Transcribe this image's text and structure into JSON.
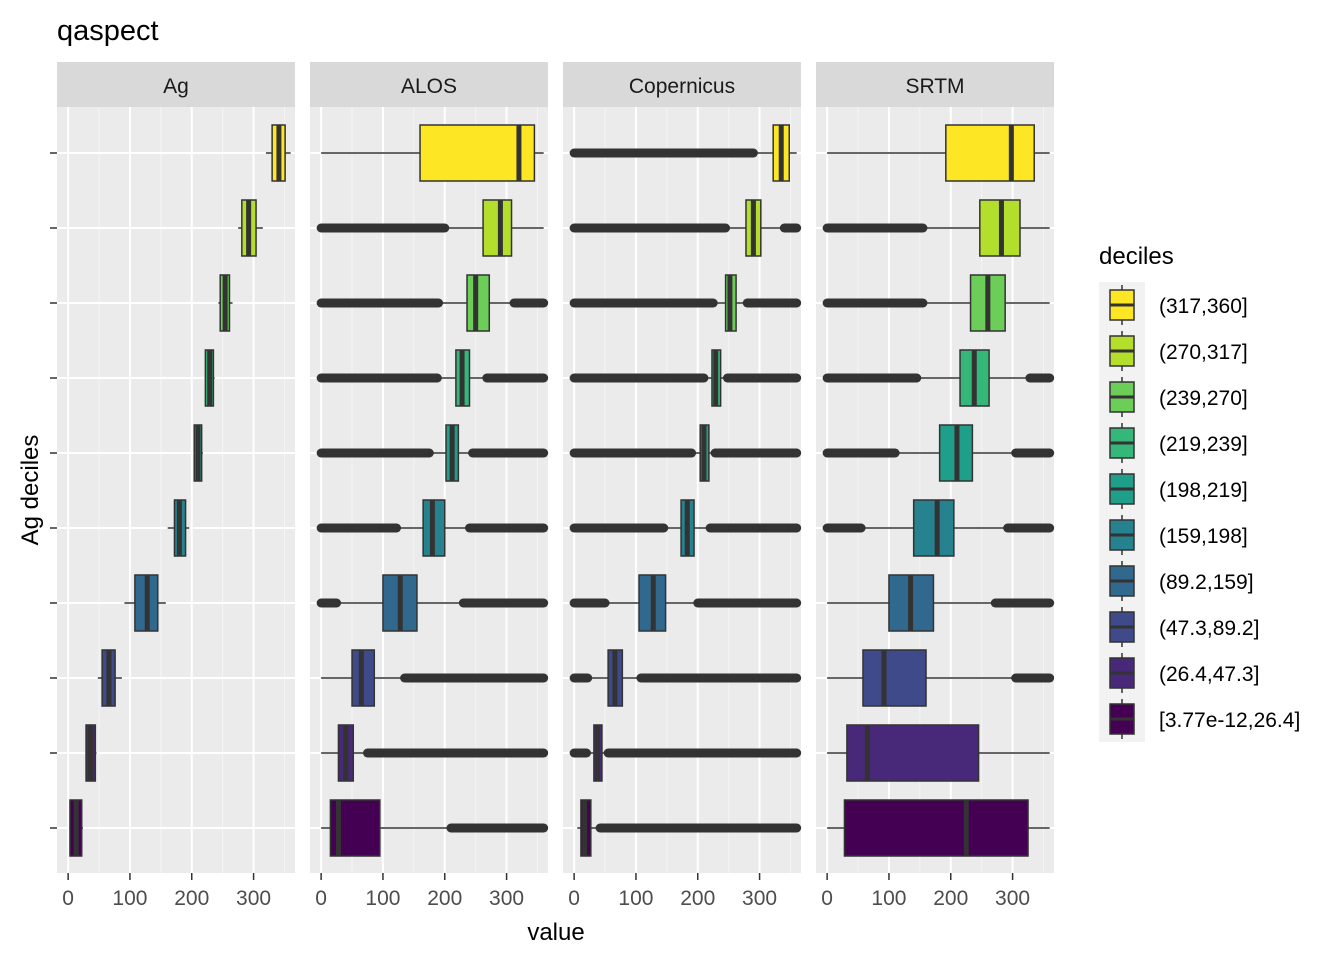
{
  "chart_data": {
    "type": "boxplot",
    "title": "qaspect",
    "xlabel": "value",
    "ylabel": "Ag deciles",
    "xlim": [
      -18,
      367
    ],
    "x_ticks": [
      0,
      100,
      200,
      300
    ],
    "legend_title": "deciles",
    "legend_position": "right",
    "categories": [
      "[3.77e-12,26.4]",
      "(26.4,47.3]",
      "(47.3,89.2]",
      "(89.2,159]",
      "(159,198]",
      "(198,219]",
      "(219,239]",
      "(239,270]",
      "(270,317]",
      "(317,360]"
    ],
    "colors": [
      "#440154",
      "#482878",
      "#3E4A89",
      "#31688E",
      "#26828E",
      "#1F9E89",
      "#35B779",
      "#6DCD59",
      "#B4DE2C",
      "#FDE725"
    ],
    "panels": [
      {
        "name": "Ag",
        "boxes": [
          {
            "wlo": 2,
            "q1": 3,
            "med": 13,
            "q3": 22,
            "whi": 24,
            "outliers": []
          },
          {
            "wlo": 28,
            "q1": 29,
            "med": 36,
            "q3": 44,
            "whi": 46,
            "outliers": []
          },
          {
            "wlo": 48,
            "q1": 55,
            "med": 66,
            "q3": 76,
            "whi": 87,
            "outliers": []
          },
          {
            "wlo": 91,
            "q1": 108,
            "med": 128,
            "q3": 145,
            "whi": 158,
            "outliers": []
          },
          {
            "wlo": 161,
            "q1": 172,
            "med": 180,
            "q3": 190,
            "whi": 196,
            "outliers": []
          },
          {
            "wlo": 203,
            "q1": 204,
            "med": 210,
            "q3": 216,
            "whi": 218,
            "outliers": []
          },
          {
            "wlo": 221,
            "q1": 222,
            "med": 229,
            "q3": 235,
            "whi": 237,
            "outliers": []
          },
          {
            "wlo": 243,
            "q1": 246,
            "med": 254,
            "q3": 261,
            "whi": 266,
            "outliers": []
          },
          {
            "wlo": 275,
            "q1": 281,
            "med": 292,
            "q3": 304,
            "whi": 315,
            "outliers": []
          },
          {
            "wlo": 320,
            "q1": 330,
            "med": 341,
            "q3": 351,
            "whi": 360,
            "outliers": []
          }
        ]
      },
      {
        "name": "ALOS",
        "boxes": [
          {
            "wlo": 0,
            "q1": 15,
            "med": 28,
            "q3": 95,
            "whi": 210,
            "outliers": [
              [
                210,
                360
              ]
            ]
          },
          {
            "wlo": 0,
            "q1": 28,
            "med": 40,
            "q3": 52,
            "whi": 75,
            "outliers": [
              [
                75,
                360
              ]
            ]
          },
          {
            "wlo": 0,
            "q1": 50,
            "med": 65,
            "q3": 86,
            "whi": 135,
            "outliers": [
              [
                135,
                360
              ]
            ]
          },
          {
            "wlo": 25,
            "q1": 100,
            "med": 128,
            "q3": 155,
            "whi": 230,
            "outliers": [
              [
                0,
                25
              ],
              [
                230,
                360
              ]
            ]
          },
          {
            "wlo": 122,
            "q1": 165,
            "med": 180,
            "q3": 200,
            "whi": 240,
            "outliers": [
              [
                0,
                122
              ],
              [
                240,
                360
              ]
            ]
          },
          {
            "wlo": 175,
            "q1": 202,
            "med": 212,
            "q3": 222,
            "whi": 245,
            "outliers": [
              [
                0,
                175
              ],
              [
                245,
                360
              ]
            ]
          },
          {
            "wlo": 188,
            "q1": 218,
            "med": 228,
            "q3": 240,
            "whi": 268,
            "outliers": [
              [
                0,
                188
              ],
              [
                268,
                360
              ]
            ]
          },
          {
            "wlo": 190,
            "q1": 236,
            "med": 250,
            "q3": 272,
            "whi": 312,
            "outliers": [
              [
                0,
                190
              ],
              [
                312,
                360
              ]
            ]
          },
          {
            "wlo": 200,
            "q1": 262,
            "med": 290,
            "q3": 308,
            "whi": 360,
            "outliers": [
              [
                0,
                200
              ]
            ]
          },
          {
            "wlo": 0,
            "q1": 160,
            "med": 320,
            "q3": 345,
            "whi": 360,
            "outliers": []
          }
        ]
      },
      {
        "name": "Copernicus",
        "boxes": [
          {
            "wlo": 5,
            "q1": 11,
            "med": 17,
            "q3": 27,
            "whi": 42,
            "outliers": [
              [
                42,
                360
              ]
            ]
          },
          {
            "wlo": 0,
            "q1": 32,
            "med": 38,
            "q3": 45,
            "whi": 55,
            "outliers": [
              [
                55,
                360
              ],
              [
                0,
                20
              ]
            ]
          },
          {
            "wlo": 0,
            "q1": 55,
            "med": 66,
            "q3": 78,
            "whi": 108,
            "outliers": [
              [
                108,
                360
              ],
              [
                0,
                22
              ]
            ]
          },
          {
            "wlo": 50,
            "q1": 105,
            "med": 128,
            "q3": 148,
            "whi": 200,
            "outliers": [
              [
                0,
                50
              ],
              [
                200,
                360
              ]
            ]
          },
          {
            "wlo": 145,
            "q1": 173,
            "med": 183,
            "q3": 194,
            "whi": 220,
            "outliers": [
              [
                0,
                145
              ],
              [
                220,
                360
              ]
            ]
          },
          {
            "wlo": 190,
            "q1": 204,
            "med": 210,
            "q3": 218,
            "whi": 228,
            "outliers": [
              [
                0,
                190
              ],
              [
                228,
                360
              ]
            ]
          },
          {
            "wlo": 210,
            "q1": 223,
            "med": 229,
            "q3": 237,
            "whi": 248,
            "outliers": [
              [
                0,
                210
              ],
              [
                248,
                360
              ]
            ]
          },
          {
            "wlo": 225,
            "q1": 245,
            "med": 252,
            "q3": 262,
            "whi": 280,
            "outliers": [
              [
                0,
                225
              ],
              [
                280,
                360
              ]
            ]
          },
          {
            "wlo": 245,
            "q1": 278,
            "med": 290,
            "q3": 302,
            "whi": 335,
            "outliers": [
              [
                0,
                245
              ],
              [
                340,
                360
              ]
            ]
          },
          {
            "wlo": 290,
            "q1": 322,
            "med": 335,
            "q3": 348,
            "whi": 360,
            "outliers": [
              [
                0,
                290
              ]
            ]
          }
        ]
      },
      {
        "name": "SRTM",
        "boxes": [
          {
            "wlo": 0,
            "q1": 28,
            "med": 225,
            "q3": 325,
            "whi": 360,
            "outliers": []
          },
          {
            "wlo": 0,
            "q1": 32,
            "med": 65,
            "q3": 245,
            "whi": 360,
            "outliers": []
          },
          {
            "wlo": 0,
            "q1": 58,
            "med": 92,
            "q3": 160,
            "whi": 305,
            "outliers": [
              [
                305,
                360
              ]
            ]
          },
          {
            "wlo": 0,
            "q1": 100,
            "med": 135,
            "q3": 172,
            "whi": 272,
            "outliers": [
              [
                272,
                360
              ]
            ]
          },
          {
            "wlo": 55,
            "q1": 140,
            "med": 178,
            "q3": 205,
            "whi": 292,
            "outliers": [
              [
                0,
                55
              ],
              [
                292,
                360
              ]
            ]
          },
          {
            "wlo": 110,
            "q1": 182,
            "med": 210,
            "q3": 235,
            "whi": 305,
            "outliers": [
              [
                0,
                110
              ],
              [
                305,
                360
              ]
            ]
          },
          {
            "wlo": 145,
            "q1": 215,
            "med": 238,
            "q3": 262,
            "whi": 328,
            "outliers": [
              [
                0,
                145
              ],
              [
                328,
                360
              ]
            ]
          },
          {
            "wlo": 155,
            "q1": 232,
            "med": 260,
            "q3": 288,
            "whi": 360,
            "outliers": [
              [
                0,
                155
              ]
            ]
          },
          {
            "wlo": 155,
            "q1": 247,
            "med": 282,
            "q3": 312,
            "whi": 360,
            "outliers": [
              [
                0,
                155
              ]
            ]
          },
          {
            "wlo": 0,
            "q1": 192,
            "med": 298,
            "q3": 335,
            "whi": 360,
            "outliers": []
          }
        ]
      }
    ]
  }
}
